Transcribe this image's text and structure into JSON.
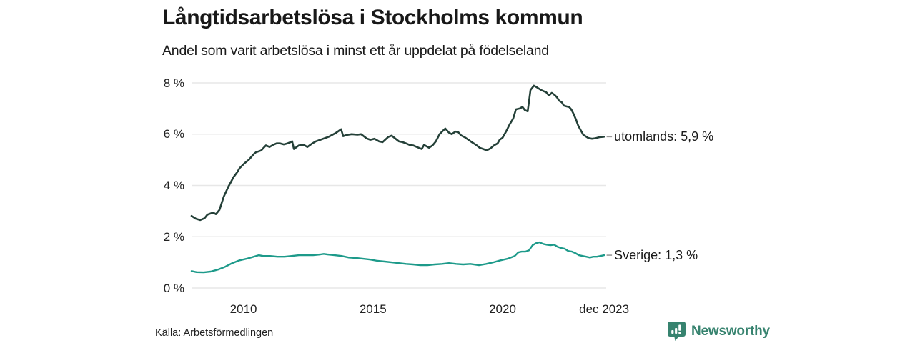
{
  "header": {
    "title": "Långtidsarbetslösa i Stockholms kommun",
    "subtitle": "Andel som varit arbetslösa i minst ett år uppdelat på födelseland"
  },
  "footer": {
    "source": "Källa: Arbetsförmedlingen",
    "brand_name": "Newsworthy",
    "brand_icon": "newsworthy-speech-bubble-barchart-icon"
  },
  "colors": {
    "series_utomlands": "#244038",
    "series_sverige": "#1d9a8a",
    "grid": "#e7e7e7",
    "text": "#1a1a1a",
    "label_connector": "#999999",
    "brand": "#37836F"
  },
  "chart_data": {
    "type": "line",
    "title": "Långtidsarbetslösa i Stockholms kommun",
    "subtitle": "Andel som varit arbetslösa i minst ett år uppdelat på födelseland",
    "xlabel": "",
    "ylabel": "",
    "x_range": [
      2008,
      2024
    ],
    "ylim": [
      0,
      8
    ],
    "grid": "horizontal-only",
    "legend_position": "right-of-line-end",
    "y_ticks": [
      {
        "value": 0,
        "label": "0 %"
      },
      {
        "value": 2,
        "label": "2 %"
      },
      {
        "value": 4,
        "label": "4 %"
      },
      {
        "value": 6,
        "label": "6 %"
      },
      {
        "value": 8,
        "label": "8 %"
      }
    ],
    "x_ticks": [
      {
        "value": 2010,
        "label": "2010"
      },
      {
        "value": 2015,
        "label": "2015"
      },
      {
        "value": 2020,
        "label": "2020"
      },
      {
        "value": 2023.92,
        "label": "dec 2023"
      }
    ],
    "series": [
      {
        "name": "utomlands",
        "label": "utomlands: 5,9 %",
        "end_value": "5,9 %",
        "color_key": "series_utomlands",
        "stroke_width": 2.6,
        "points": [
          [
            2008.0,
            2.81
          ],
          [
            2008.17,
            2.7
          ],
          [
            2008.33,
            2.65
          ],
          [
            2008.5,
            2.72
          ],
          [
            2008.61,
            2.86
          ],
          [
            2008.83,
            2.94
          ],
          [
            2008.94,
            2.88
          ],
          [
            2009.08,
            3.05
          ],
          [
            2009.24,
            3.56
          ],
          [
            2009.43,
            3.97
          ],
          [
            2009.63,
            4.34
          ],
          [
            2009.77,
            4.53
          ],
          [
            2009.85,
            4.67
          ],
          [
            2010.04,
            4.86
          ],
          [
            2010.21,
            5.0
          ],
          [
            2010.4,
            5.22
          ],
          [
            2010.48,
            5.29
          ],
          [
            2010.68,
            5.36
          ],
          [
            2010.87,
            5.56
          ],
          [
            2011.01,
            5.5
          ],
          [
            2011.14,
            5.58
          ],
          [
            2011.28,
            5.64
          ],
          [
            2011.42,
            5.64
          ],
          [
            2011.56,
            5.6
          ],
          [
            2011.7,
            5.64
          ],
          [
            2011.83,
            5.69
          ],
          [
            2011.88,
            5.72
          ],
          [
            2011.95,
            5.42
          ],
          [
            2012.14,
            5.56
          ],
          [
            2012.33,
            5.58
          ],
          [
            2012.47,
            5.5
          ],
          [
            2012.66,
            5.64
          ],
          [
            2012.8,
            5.72
          ],
          [
            2012.97,
            5.78
          ],
          [
            2013.3,
            5.9
          ],
          [
            2013.57,
            6.05
          ],
          [
            2013.77,
            6.19
          ],
          [
            2013.85,
            5.92
          ],
          [
            2013.99,
            5.97
          ],
          [
            2014.18,
            6.0
          ],
          [
            2014.4,
            5.98
          ],
          [
            2014.54,
            6.0
          ],
          [
            2014.76,
            5.83
          ],
          [
            2014.9,
            5.78
          ],
          [
            2015.06,
            5.82
          ],
          [
            2015.23,
            5.72
          ],
          [
            2015.37,
            5.69
          ],
          [
            2015.59,
            5.89
          ],
          [
            2015.72,
            5.94
          ],
          [
            2015.86,
            5.83
          ],
          [
            2016.0,
            5.72
          ],
          [
            2016.14,
            5.69
          ],
          [
            2016.28,
            5.64
          ],
          [
            2016.41,
            5.58
          ],
          [
            2016.55,
            5.56
          ],
          [
            2016.69,
            5.5
          ],
          [
            2016.88,
            5.42
          ],
          [
            2016.97,
            5.58
          ],
          [
            2017.16,
            5.47
          ],
          [
            2017.3,
            5.56
          ],
          [
            2017.43,
            5.72
          ],
          [
            2017.57,
            6.0
          ],
          [
            2017.71,
            6.14
          ],
          [
            2017.79,
            6.22
          ],
          [
            2017.93,
            6.06
          ],
          [
            2018.04,
            6.0
          ],
          [
            2018.18,
            6.1
          ],
          [
            2018.29,
            6.08
          ],
          [
            2018.4,
            5.95
          ],
          [
            2018.54,
            5.88
          ],
          [
            2018.68,
            5.78
          ],
          [
            2018.81,
            5.69
          ],
          [
            2018.98,
            5.58
          ],
          [
            2019.12,
            5.47
          ],
          [
            2019.26,
            5.42
          ],
          [
            2019.39,
            5.37
          ],
          [
            2019.53,
            5.44
          ],
          [
            2019.67,
            5.56
          ],
          [
            2019.81,
            5.64
          ],
          [
            2019.89,
            5.78
          ],
          [
            2020.0,
            5.86
          ],
          [
            2020.14,
            6.11
          ],
          [
            2020.28,
            6.39
          ],
          [
            2020.41,
            6.61
          ],
          [
            2020.52,
            6.97
          ],
          [
            2020.66,
            7.0
          ],
          [
            2020.77,
            7.06
          ],
          [
            2020.86,
            6.94
          ],
          [
            2020.97,
            6.89
          ],
          [
            2021.08,
            7.72
          ],
          [
            2021.21,
            7.89
          ],
          [
            2021.35,
            7.81
          ],
          [
            2021.49,
            7.72
          ],
          [
            2021.6,
            7.67
          ],
          [
            2021.68,
            7.64
          ],
          [
            2021.79,
            7.51
          ],
          [
            2021.9,
            7.61
          ],
          [
            2022.01,
            7.53
          ],
          [
            2022.1,
            7.44
          ],
          [
            2022.18,
            7.31
          ],
          [
            2022.29,
            7.24
          ],
          [
            2022.37,
            7.11
          ],
          [
            2022.48,
            7.08
          ],
          [
            2022.57,
            7.06
          ],
          [
            2022.65,
            6.97
          ],
          [
            2022.73,
            6.81
          ],
          [
            2022.84,
            6.56
          ],
          [
            2022.92,
            6.33
          ],
          [
            2023.01,
            6.17
          ],
          [
            2023.12,
            5.97
          ],
          [
            2023.2,
            5.92
          ],
          [
            2023.31,
            5.85
          ],
          [
            2023.45,
            5.82
          ],
          [
            2023.59,
            5.84
          ],
          [
            2023.72,
            5.88
          ],
          [
            2023.92,
            5.9
          ]
        ]
      },
      {
        "name": "Sverige",
        "label": "Sverige: 1,3 %",
        "end_value": "1,3 %",
        "color_key": "series_sverige",
        "stroke_width": 2.4,
        "points": [
          [
            2008.0,
            0.66
          ],
          [
            2008.19,
            0.62
          ],
          [
            2008.47,
            0.61
          ],
          [
            2008.74,
            0.64
          ],
          [
            2009.02,
            0.72
          ],
          [
            2009.3,
            0.83
          ],
          [
            2009.57,
            0.97
          ],
          [
            2009.85,
            1.08
          ],
          [
            2010.12,
            1.14
          ],
          [
            2010.4,
            1.22
          ],
          [
            2010.59,
            1.28
          ],
          [
            2010.76,
            1.25
          ],
          [
            2011.03,
            1.25
          ],
          [
            2011.31,
            1.22
          ],
          [
            2011.59,
            1.22
          ],
          [
            2011.86,
            1.25
          ],
          [
            2012.14,
            1.28
          ],
          [
            2012.41,
            1.28
          ],
          [
            2012.69,
            1.28
          ],
          [
            2012.97,
            1.31
          ],
          [
            2013.1,
            1.33
          ],
          [
            2013.24,
            1.31
          ],
          [
            2013.52,
            1.28
          ],
          [
            2013.79,
            1.25
          ],
          [
            2014.07,
            1.19
          ],
          [
            2014.34,
            1.17
          ],
          [
            2014.62,
            1.14
          ],
          [
            2014.9,
            1.11
          ],
          [
            2015.17,
            1.06
          ],
          [
            2015.45,
            1.03
          ],
          [
            2015.72,
            1.0
          ],
          [
            2016.0,
            0.97
          ],
          [
            2016.28,
            0.94
          ],
          [
            2016.55,
            0.92
          ],
          [
            2016.83,
            0.89
          ],
          [
            2017.1,
            0.89
          ],
          [
            2017.38,
            0.92
          ],
          [
            2017.66,
            0.94
          ],
          [
            2017.93,
            0.97
          ],
          [
            2018.21,
            0.94
          ],
          [
            2018.48,
            0.92
          ],
          [
            2018.76,
            0.94
          ],
          [
            2019.09,
            0.89
          ],
          [
            2019.37,
            0.94
          ],
          [
            2019.64,
            1.0
          ],
          [
            2019.92,
            1.08
          ],
          [
            2020.19,
            1.14
          ],
          [
            2020.47,
            1.25
          ],
          [
            2020.61,
            1.39
          ],
          [
            2020.74,
            1.42
          ],
          [
            2020.88,
            1.42
          ],
          [
            2021.02,
            1.47
          ],
          [
            2021.16,
            1.67
          ],
          [
            2021.3,
            1.75
          ],
          [
            2021.43,
            1.78
          ],
          [
            2021.57,
            1.72
          ],
          [
            2021.71,
            1.69
          ],
          [
            2021.85,
            1.67
          ],
          [
            2021.99,
            1.69
          ],
          [
            2022.12,
            1.61
          ],
          [
            2022.26,
            1.56
          ],
          [
            2022.4,
            1.53
          ],
          [
            2022.54,
            1.44
          ],
          [
            2022.68,
            1.42
          ],
          [
            2022.81,
            1.36
          ],
          [
            2022.95,
            1.28
          ],
          [
            2023.09,
            1.25
          ],
          [
            2023.23,
            1.22
          ],
          [
            2023.37,
            1.19
          ],
          [
            2023.5,
            1.22
          ],
          [
            2023.64,
            1.22
          ],
          [
            2023.78,
            1.25
          ],
          [
            2023.92,
            1.28
          ]
        ]
      }
    ]
  }
}
